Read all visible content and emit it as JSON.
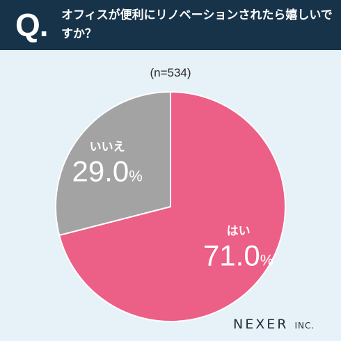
{
  "header": {
    "q_mark": "Q.",
    "question": "オフィスが便利にリノベーションされたら嬉しいですか？"
  },
  "sample_label": "(n=534)",
  "brand": {
    "name": "NEXER",
    "suffix": "INC."
  },
  "colors": {
    "header_bg": "#17334a",
    "background": "#e6f1f8",
    "yes": "#ec5f87",
    "no": "#a3a3a3"
  },
  "chart_data": {
    "type": "pie",
    "title": "",
    "categories": [
      "はい",
      "いいえ"
    ],
    "values": [
      71.0,
      29.0
    ],
    "value_labels": [
      "71.0",
      "29.0"
    ],
    "unit": "%",
    "colors": [
      "#ec5f87",
      "#a3a3a3"
    ],
    "start_angle_deg": 0,
    "direction": "clockwise"
  }
}
